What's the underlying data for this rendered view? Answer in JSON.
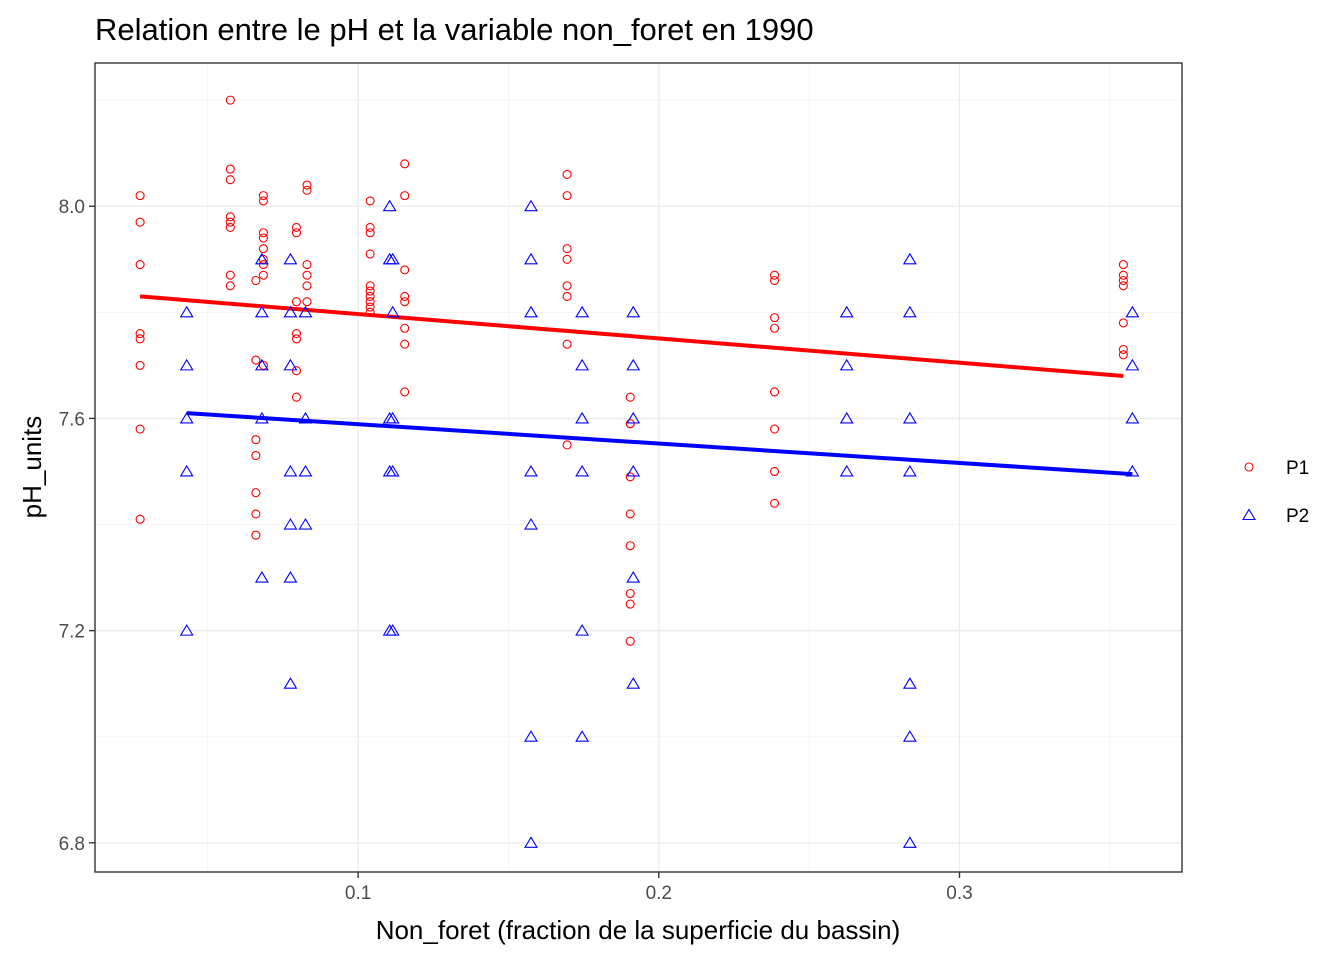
{
  "chart_data": {
    "type": "scatter",
    "title": "Relation entre le pH et la variable non_foret en 1990",
    "xlabel": "Non_foret (fraction de la superficie du bassin)",
    "ylabel": "pH_units",
    "xlim": [
      0.0125,
      0.374
    ],
    "ylim": [
      6.745,
      8.27
    ],
    "x_ticks": [
      0.1,
      0.2,
      0.3
    ],
    "x_tick_labels": [
      "0.1",
      "0.2",
      "0.3"
    ],
    "y_ticks": [
      6.8,
      7.2,
      7.6,
      8.0
    ],
    "y_tick_labels": [
      "6.8",
      "7.2",
      "7.6",
      "8.0"
    ],
    "grid": true,
    "legend_position": "right",
    "series": [
      {
        "name": "P1",
        "color": "#ff0000",
        "marker": "circle",
        "points": [
          [
            0.0275,
            8.02
          ],
          [
            0.0275,
            7.97
          ],
          [
            0.0275,
            7.89
          ],
          [
            0.0275,
            7.76
          ],
          [
            0.0275,
            7.75
          ],
          [
            0.0275,
            7.7
          ],
          [
            0.0275,
            7.58
          ],
          [
            0.0275,
            7.41
          ],
          [
            0.0575,
            8.2
          ],
          [
            0.0575,
            8.07
          ],
          [
            0.0575,
            8.05
          ],
          [
            0.0575,
            7.98
          ],
          [
            0.0575,
            7.97
          ],
          [
            0.0575,
            7.96
          ],
          [
            0.0575,
            7.87
          ],
          [
            0.0575,
            7.85
          ],
          [
            0.066,
            7.86
          ],
          [
            0.066,
            7.71
          ],
          [
            0.066,
            7.56
          ],
          [
            0.066,
            7.53
          ],
          [
            0.066,
            7.46
          ],
          [
            0.066,
            7.42
          ],
          [
            0.066,
            7.38
          ],
          [
            0.0685,
            8.02
          ],
          [
            0.0685,
            8.01
          ],
          [
            0.0685,
            7.95
          ],
          [
            0.0685,
            7.94
          ],
          [
            0.0685,
            7.92
          ],
          [
            0.0685,
            7.9
          ],
          [
            0.0685,
            7.89
          ],
          [
            0.0685,
            7.87
          ],
          [
            0.0685,
            7.7
          ],
          [
            0.0795,
            7.96
          ],
          [
            0.0795,
            7.95
          ],
          [
            0.0795,
            7.82
          ],
          [
            0.0795,
            7.76
          ],
          [
            0.0795,
            7.75
          ],
          [
            0.0795,
            7.69
          ],
          [
            0.0795,
            7.64
          ],
          [
            0.083,
            8.04
          ],
          [
            0.083,
            8.03
          ],
          [
            0.083,
            7.89
          ],
          [
            0.083,
            7.87
          ],
          [
            0.083,
            7.85
          ],
          [
            0.083,
            7.82
          ],
          [
            0.104,
            8.01
          ],
          [
            0.104,
            7.96
          ],
          [
            0.104,
            7.95
          ],
          [
            0.104,
            7.91
          ],
          [
            0.104,
            7.85
          ],
          [
            0.104,
            7.84
          ],
          [
            0.104,
            7.83
          ],
          [
            0.104,
            7.82
          ],
          [
            0.104,
            7.81
          ],
          [
            0.104,
            7.8
          ],
          [
            0.1155,
            8.08
          ],
          [
            0.1155,
            8.02
          ],
          [
            0.1155,
            7.88
          ],
          [
            0.1155,
            7.83
          ],
          [
            0.1155,
            7.82
          ],
          [
            0.1155,
            7.77
          ],
          [
            0.1155,
            7.74
          ],
          [
            0.1155,
            7.65
          ],
          [
            0.1695,
            8.06
          ],
          [
            0.1695,
            8.02
          ],
          [
            0.1695,
            7.92
          ],
          [
            0.1695,
            7.9
          ],
          [
            0.1695,
            7.85
          ],
          [
            0.1695,
            7.83
          ],
          [
            0.1695,
            7.74
          ],
          [
            0.1695,
            7.55
          ],
          [
            0.1905,
            7.64
          ],
          [
            0.1905,
            7.59
          ],
          [
            0.1905,
            7.49
          ],
          [
            0.1905,
            7.42
          ],
          [
            0.1905,
            7.36
          ],
          [
            0.1905,
            7.27
          ],
          [
            0.1905,
            7.25
          ],
          [
            0.1905,
            7.18
          ],
          [
            0.2385,
            7.87
          ],
          [
            0.2385,
            7.86
          ],
          [
            0.2385,
            7.79
          ],
          [
            0.2385,
            7.77
          ],
          [
            0.2385,
            7.65
          ],
          [
            0.2385,
            7.58
          ],
          [
            0.2385,
            7.5
          ],
          [
            0.2385,
            7.44
          ],
          [
            0.3545,
            7.89
          ],
          [
            0.3545,
            7.87
          ],
          [
            0.3545,
            7.86
          ],
          [
            0.3545,
            7.85
          ],
          [
            0.3545,
            7.78
          ],
          [
            0.3545,
            7.73
          ],
          [
            0.3545,
            7.72
          ]
        ],
        "trend": {
          "x": [
            0.0275,
            0.3545
          ],
          "y": [
            7.83,
            7.68
          ]
        }
      },
      {
        "name": "P2",
        "color": "#0000ff",
        "marker": "triangle",
        "points": [
          [
            0.043,
            7.8
          ],
          [
            0.043,
            7.7
          ],
          [
            0.043,
            7.6
          ],
          [
            0.043,
            7.5
          ],
          [
            0.043,
            7.2
          ],
          [
            0.068,
            7.9
          ],
          [
            0.068,
            7.8
          ],
          [
            0.068,
            7.7
          ],
          [
            0.068,
            7.6
          ],
          [
            0.068,
            7.3
          ],
          [
            0.0775,
            7.9
          ],
          [
            0.0775,
            7.8
          ],
          [
            0.0775,
            7.7
          ],
          [
            0.0775,
            7.5
          ],
          [
            0.0775,
            7.4
          ],
          [
            0.0775,
            7.3
          ],
          [
            0.0775,
            7.1
          ],
          [
            0.0825,
            7.8
          ],
          [
            0.0825,
            7.6
          ],
          [
            0.0825,
            7.5
          ],
          [
            0.0825,
            7.4
          ],
          [
            0.1105,
            8.0
          ],
          [
            0.1105,
            7.9
          ],
          [
            0.1105,
            7.6
          ],
          [
            0.1105,
            7.5
          ],
          [
            0.1105,
            7.2
          ],
          [
            0.1115,
            7.9
          ],
          [
            0.1115,
            7.8
          ],
          [
            0.1115,
            7.6
          ],
          [
            0.1115,
            7.5
          ],
          [
            0.1115,
            7.2
          ],
          [
            0.1575,
            8.0
          ],
          [
            0.1575,
            7.9
          ],
          [
            0.1575,
            7.8
          ],
          [
            0.1575,
            7.5
          ],
          [
            0.1575,
            7.4
          ],
          [
            0.1575,
            7.0
          ],
          [
            0.1575,
            6.8
          ],
          [
            0.1745,
            7.8
          ],
          [
            0.1745,
            7.7
          ],
          [
            0.1745,
            7.6
          ],
          [
            0.1745,
            7.5
          ],
          [
            0.1745,
            7.2
          ],
          [
            0.1745,
            7.0
          ],
          [
            0.1915,
            7.8
          ],
          [
            0.1915,
            7.7
          ],
          [
            0.1915,
            7.6
          ],
          [
            0.1915,
            7.5
          ],
          [
            0.1915,
            7.3
          ],
          [
            0.1915,
            7.1
          ],
          [
            0.2625,
            7.8
          ],
          [
            0.2625,
            7.7
          ],
          [
            0.2625,
            7.6
          ],
          [
            0.2625,
            7.5
          ],
          [
            0.2835,
            7.9
          ],
          [
            0.2835,
            7.8
          ],
          [
            0.2835,
            7.6
          ],
          [
            0.2835,
            7.5
          ],
          [
            0.2835,
            7.1
          ],
          [
            0.2835,
            7.0
          ],
          [
            0.2835,
            6.8
          ],
          [
            0.3575,
            7.8
          ],
          [
            0.3575,
            7.7
          ],
          [
            0.3575,
            7.6
          ],
          [
            0.3575,
            7.5
          ]
        ],
        "trend": {
          "x": [
            0.043,
            0.3575
          ],
          "y": [
            7.61,
            7.495
          ]
        }
      }
    ]
  }
}
